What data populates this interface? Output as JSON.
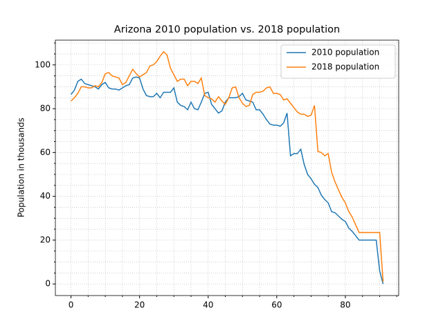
{
  "chart_data": {
    "type": "line",
    "title": "Arizona 2010 population vs. 2018 population",
    "ylabel": "Population in thousands",
    "x": [
      0,
      1,
      2,
      3,
      4,
      5,
      6,
      7,
      8,
      9,
      10,
      11,
      12,
      13,
      14,
      15,
      16,
      17,
      18,
      19,
      20,
      21,
      22,
      23,
      24,
      25,
      26,
      27,
      28,
      29,
      30,
      31,
      32,
      33,
      34,
      35,
      36,
      37,
      38,
      39,
      40,
      41,
      42,
      43,
      44,
      45,
      46,
      47,
      48,
      49,
      50,
      51,
      52,
      53,
      54,
      55,
      56,
      57,
      58,
      59,
      60,
      61,
      62,
      63,
      64,
      65,
      66,
      67,
      68,
      69,
      70,
      71,
      72,
      73,
      74,
      75,
      76,
      77,
      78,
      79,
      80,
      81,
      82,
      83,
      84,
      85,
      86,
      87,
      88,
      89,
      90,
      91
    ],
    "series": [
      {
        "name": "2010 population",
        "color": "#1f77b4",
        "values": [
          86.5,
          88.5,
          92.5,
          93.5,
          91.5,
          91,
          90.5,
          90,
          89,
          91,
          92,
          89.5,
          89,
          89,
          88.5,
          89.5,
          90.5,
          91,
          94,
          94.5,
          94,
          89,
          86,
          85.5,
          85.5,
          87,
          85,
          87.5,
          87.5,
          87.5,
          89.5,
          83,
          81.5,
          81,
          79.5,
          83,
          80,
          79.5,
          83,
          87,
          87.5,
          82,
          80,
          78,
          79,
          83,
          85,
          85,
          85,
          85.5,
          87,
          84,
          83.5,
          83,
          79.5,
          79.5,
          77.5,
          75,
          73,
          72.5,
          72.5,
          72,
          73.5,
          78,
          58.5,
          59.5,
          59.5,
          61.5,
          54.5,
          50,
          48,
          45.5,
          44,
          40.5,
          38.5,
          37,
          33,
          32.5,
          31,
          29.5,
          28.5,
          25.5,
          24,
          22,
          20,
          20,
          20,
          20,
          20,
          20,
          6,
          0
        ]
      },
      {
        "name": "2018 population",
        "color": "#ff7f0e",
        "values": [
          83.5,
          85,
          87,
          90,
          90,
          89.5,
          89.5,
          90.5,
          90,
          92,
          96,
          96.5,
          95,
          94.5,
          94,
          91,
          92,
          95,
          98,
          96,
          94.5,
          95.5,
          96.5,
          99.5,
          100,
          101.5,
          104,
          106,
          104.5,
          98.5,
          95.5,
          92.5,
          93.5,
          93.5,
          90.5,
          92.5,
          92.5,
          91.5,
          94,
          86,
          85,
          84.5,
          83,
          85.5,
          83.5,
          82,
          85,
          89.5,
          90,
          85,
          82.5,
          81,
          81.5,
          86.5,
          87.5,
          87.5,
          88,
          89.5,
          90,
          87,
          87,
          86.5,
          84,
          84.5,
          82.5,
          80.5,
          78.5,
          77.5,
          77.5,
          76.5,
          77,
          81.5,
          60.5,
          60,
          58.5,
          59.5,
          51,
          46.5,
          43,
          39.5,
          37,
          33,
          30.5,
          27,
          23.5,
          23.5,
          23.5,
          23.5,
          23.5,
          23.5,
          23.5,
          1
        ]
      }
    ],
    "xlim": [
      -4.55,
      95.55
    ],
    "ylim": [
      -5.3,
      111.3
    ],
    "xticks": [
      0,
      20,
      40,
      60,
      80
    ],
    "yticks": [
      0,
      20,
      40,
      60,
      80,
      100
    ],
    "xminorticks": [
      5,
      10,
      15,
      25,
      30,
      35,
      45,
      50,
      55,
      65,
      70,
      75,
      85,
      90,
      95
    ],
    "yminorticks": [
      5,
      10,
      15,
      25,
      30,
      35,
      45,
      50,
      55,
      65,
      70,
      75,
      85,
      90,
      95,
      105,
      110
    ],
    "grid": true,
    "legend": "upper right"
  }
}
